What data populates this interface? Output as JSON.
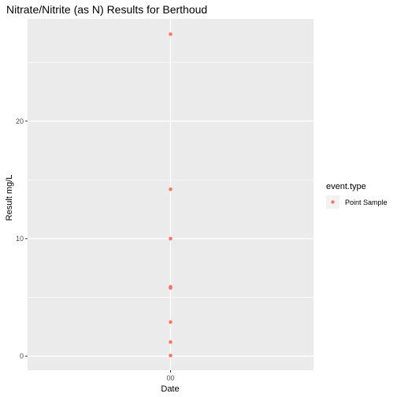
{
  "chart_data": {
    "type": "scatter",
    "title": "Nitrate/Nitrite (as N) Results for Berthoud",
    "xlabel": "Date",
    "ylabel": "Result mg/L",
    "x_tick_labels": [
      "00"
    ],
    "y_ticks": [
      0,
      10,
      20
    ],
    "ylim": [
      -1.2,
      28.7
    ],
    "grid": true,
    "legend": {
      "title": "event.type",
      "position": "right",
      "entries": [
        "Point Sample"
      ]
    },
    "series": [
      {
        "name": "Point Sample",
        "color": "#F8766D",
        "x": [
          "00",
          "00",
          "00",
          "00",
          "00",
          "00",
          "00",
          "00"
        ],
        "y": [
          27.4,
          14.2,
          10.0,
          5.9,
          5.8,
          2.9,
          1.2,
          0.05
        ]
      }
    ]
  }
}
